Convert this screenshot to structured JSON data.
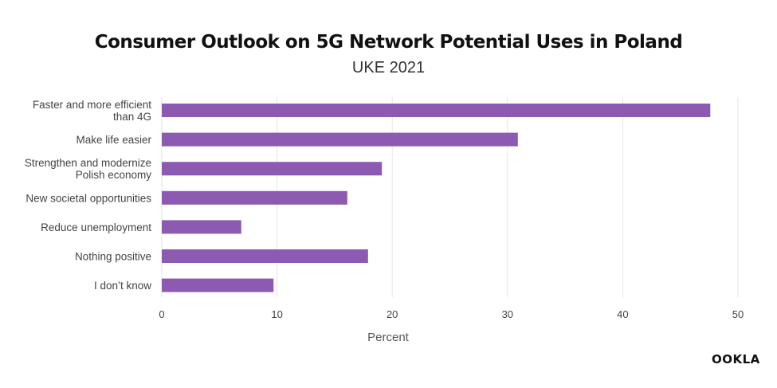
{
  "chart_data": {
    "type": "bar",
    "orientation": "horizontal",
    "title": "Consumer Outlook on 5G Network Potential Uses in Poland",
    "subtitle": "UKE 2021",
    "xlabel": "Percent",
    "ylabel": "",
    "categories": [
      [
        "Faster and more efficient",
        "than 4G"
      ],
      [
        "Make life easier"
      ],
      [
        "Strengthen and modernize",
        "Polish economy"
      ],
      [
        "New societal opportunities"
      ],
      [
        "Reduce unemployment"
      ],
      [
        "Nothing positive"
      ],
      [
        "I don’t know"
      ]
    ],
    "values": [
      47.6,
      30.9,
      19.1,
      16.1,
      6.9,
      17.9,
      9.7
    ],
    "xlim": [
      0,
      50
    ],
    "xticks": [
      0,
      10,
      20,
      30,
      40,
      50
    ],
    "grid": "vertical",
    "bar_color": "#8c5bb1",
    "grid_color": "#e6e6e6"
  },
  "brand": {
    "logo_text": "OOKLA"
  }
}
